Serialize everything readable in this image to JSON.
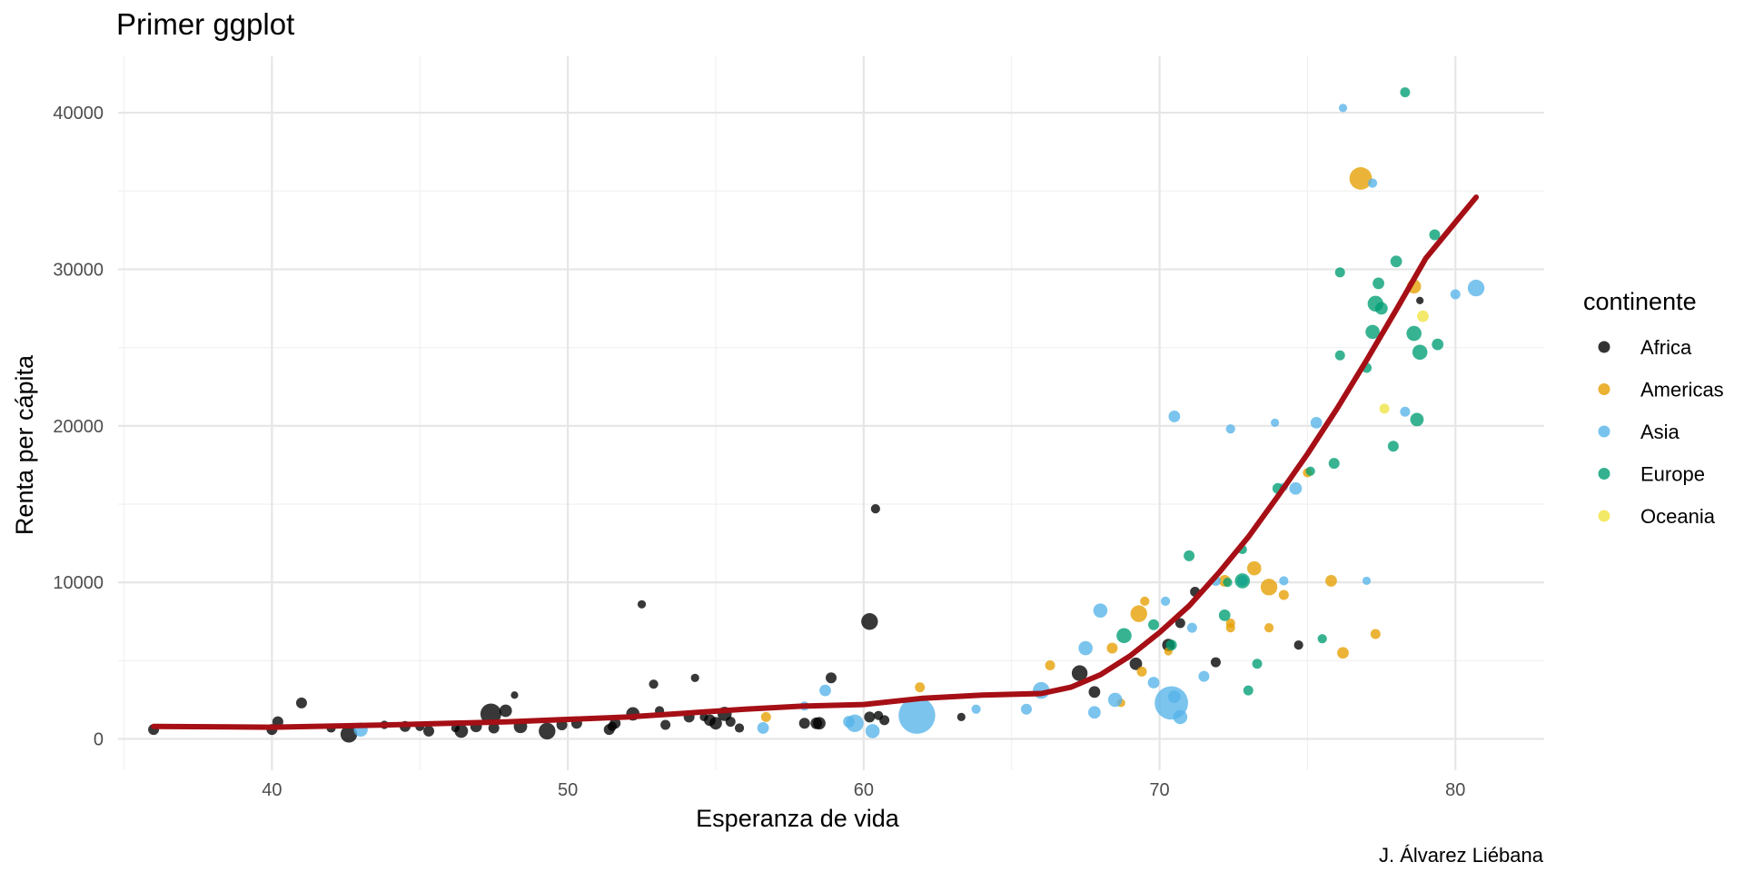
{
  "chart_data": {
    "type": "scatter",
    "title": "Primer ggplot",
    "xlabel": "Esperanza de vida",
    "ylabel": "Renta per cápita",
    "caption": "J. Álvarez Liébana",
    "xlim": [
      34.8,
      83
    ],
    "ylim": [
      -2000,
      43600
    ],
    "x_ticks": [
      40,
      50,
      60,
      70,
      80
    ],
    "y_ticks": [
      0,
      10000,
      20000,
      30000,
      40000
    ],
    "x_tick_labels": [
      "40",
      "50",
      "60",
      "70",
      "80"
    ],
    "y_tick_labels": [
      "0",
      "10000",
      "20000",
      "30000",
      "40000"
    ],
    "grid": true,
    "legend": {
      "title": "continente",
      "position": "right",
      "entries": [
        {
          "label": "Africa",
          "color": "#000000"
        },
        {
          "label": "Americas",
          "color": "#E69F00"
        },
        {
          "label": "Asia",
          "color": "#56B4E9"
        },
        {
          "label": "Europe",
          "color": "#009E73"
        },
        {
          "label": "Oceania",
          "color": "#F0E442"
        }
      ]
    },
    "series": [
      {
        "name": "Africa",
        "color": "#000000",
        "points": [
          [
            36.0,
            600,
            1.3
          ],
          [
            40.0,
            600,
            1.3
          ],
          [
            40.2,
            1100,
            1.3
          ],
          [
            41.0,
            2300,
            1.3
          ],
          [
            42.0,
            700,
            1.1
          ],
          [
            42.6,
            300,
            2.0
          ],
          [
            43.8,
            900,
            1.0
          ],
          [
            44.5,
            800,
            1.3
          ],
          [
            45.0,
            800,
            1.1
          ],
          [
            45.3,
            500,
            1.3
          ],
          [
            46.2,
            700,
            1.0
          ],
          [
            46.4,
            500,
            1.6
          ],
          [
            46.9,
            800,
            1.4
          ],
          [
            47.4,
            1600,
            2.5
          ],
          [
            47.5,
            700,
            1.3
          ],
          [
            47.9,
            1800,
            1.5
          ],
          [
            48.2,
            2800,
            0.9
          ],
          [
            48.4,
            800,
            1.6
          ],
          [
            49.3,
            500,
            2.0
          ],
          [
            49.8,
            900,
            1.3
          ],
          [
            50.3,
            1000,
            1.3
          ],
          [
            51.4,
            600,
            1.3
          ],
          [
            51.5,
            800,
            1.1
          ],
          [
            51.6,
            1000,
            1.3
          ],
          [
            52.2,
            1600,
            1.6
          ],
          [
            52.5,
            8600,
            1.0
          ],
          [
            52.9,
            3500,
            1.1
          ],
          [
            53.1,
            1800,
            1.1
          ],
          [
            53.3,
            900,
            1.2
          ],
          [
            54.1,
            1400,
            1.3
          ],
          [
            54.3,
            3900,
            1.0
          ],
          [
            54.6,
            1400,
            1.0
          ],
          [
            54.8,
            1200,
            1.4
          ],
          [
            55.0,
            1000,
            1.5
          ],
          [
            55.3,
            1600,
            1.7
          ],
          [
            55.5,
            1100,
            1.2
          ],
          [
            55.8,
            700,
            1.1
          ],
          [
            58.0,
            1000,
            1.3
          ],
          [
            58.4,
            1000,
            1.4
          ],
          [
            58.5,
            1000,
            1.5
          ],
          [
            58.9,
            3900,
            1.3
          ],
          [
            60.2,
            1400,
            1.3
          ],
          [
            60.2,
            7500,
            2.0
          ],
          [
            60.4,
            14700,
            1.1
          ],
          [
            60.5,
            1500,
            1.1
          ],
          [
            60.7,
            1200,
            1.2
          ],
          [
            63.3,
            1400,
            1.0
          ],
          [
            67.3,
            4200,
            1.9
          ],
          [
            67.8,
            3000,
            1.4
          ],
          [
            69.2,
            4800,
            1.5
          ],
          [
            70.3,
            6000,
            1.5
          ],
          [
            70.7,
            7400,
            1.2
          ],
          [
            71.2,
            9400,
            1.2
          ],
          [
            71.9,
            4900,
            1.2
          ],
          [
            74.7,
            6000,
            1.1
          ],
          [
            78.8,
            28000,
            0.9
          ]
        ]
      },
      {
        "name": "Americas",
        "color": "#E69F00",
        "points": [
          [
            56.7,
            1400,
            1.2
          ],
          [
            61.9,
            3300,
            1.2
          ],
          [
            66.3,
            4700,
            1.2
          ],
          [
            68.4,
            5800,
            1.3
          ],
          [
            68.7,
            2300,
            1.0
          ],
          [
            69.3,
            8000,
            2.0
          ],
          [
            69.4,
            4300,
            1.2
          ],
          [
            69.5,
            8800,
            1.1
          ],
          [
            70.3,
            5600,
            1.0
          ],
          [
            72.2,
            10100,
            1.4
          ],
          [
            72.4,
            7100,
            1.1
          ],
          [
            72.4,
            7400,
            1.1
          ],
          [
            73.2,
            10900,
            1.7
          ],
          [
            73.7,
            9700,
            2.0
          ],
          [
            73.7,
            7100,
            1.1
          ],
          [
            74.2,
            9200,
            1.2
          ],
          [
            75.0,
            17000,
            1.1
          ],
          [
            75.8,
            10100,
            1.4
          ],
          [
            76.2,
            5500,
            1.4
          ],
          [
            76.8,
            35800,
            2.7
          ],
          [
            77.3,
            6700,
            1.2
          ],
          [
            78.6,
            28900,
            1.7
          ]
        ]
      },
      {
        "name": "Asia",
        "color": "#56B4E9",
        "points": [
          [
            43.0,
            600,
            1.7
          ],
          [
            56.6,
            700,
            1.4
          ],
          [
            58.0,
            2100,
            1.1
          ],
          [
            58.7,
            3100,
            1.4
          ],
          [
            59.5,
            1100,
            1.4
          ],
          [
            59.7,
            1000,
            2.1
          ],
          [
            60.3,
            500,
            1.7
          ],
          [
            61.8,
            1500,
            4.4
          ],
          [
            63.8,
            1900,
            1.1
          ],
          [
            65.5,
            1900,
            1.3
          ],
          [
            66.0,
            3100,
            2.0
          ],
          [
            67.5,
            5800,
            1.7
          ],
          [
            67.8,
            1700,
            1.5
          ],
          [
            68.0,
            8200,
            1.7
          ],
          [
            68.5,
            2500,
            1.7
          ],
          [
            69.8,
            3600,
            1.4
          ],
          [
            70.2,
            8800,
            1.1
          ],
          [
            70.4,
            2300,
            4.0
          ],
          [
            70.5,
            20600,
            1.4
          ],
          [
            70.5,
            2700,
            1.5
          ],
          [
            70.7,
            1400,
            1.7
          ],
          [
            71.1,
            7100,
            1.2
          ],
          [
            71.5,
            4000,
            1.3
          ],
          [
            71.9,
            10100,
            1.2
          ],
          [
            72.4,
            19800,
            1.1
          ],
          [
            72.8,
            10100,
            1.3
          ],
          [
            73.9,
            20200,
            1.0
          ],
          [
            74.2,
            10100,
            1.1
          ],
          [
            74.2,
            16100,
            1.0
          ],
          [
            74.6,
            16000,
            1.5
          ],
          [
            75.3,
            20200,
            1.4
          ],
          [
            76.2,
            40300,
            1.0
          ],
          [
            77.0,
            10100,
            1.0
          ],
          [
            77.2,
            35500,
            1.1
          ],
          [
            78.3,
            20900,
            1.2
          ],
          [
            80.0,
            28400,
            1.2
          ],
          [
            80.7,
            28800,
            2.0
          ]
        ]
      },
      {
        "name": "Europe",
        "color": "#009E73",
        "points": [
          [
            68.8,
            6600,
            1.8
          ],
          [
            69.8,
            7300,
            1.3
          ],
          [
            70.4,
            6000,
            1.3
          ],
          [
            71.0,
            11700,
            1.3
          ],
          [
            72.2,
            7900,
            1.4
          ],
          [
            72.3,
            10000,
            1.1
          ],
          [
            72.8,
            10100,
            1.8
          ],
          [
            72.8,
            12100,
            1.1
          ],
          [
            73.0,
            3100,
            1.2
          ],
          [
            73.3,
            4800,
            1.2
          ],
          [
            74.0,
            16000,
            1.3
          ],
          [
            75.1,
            17100,
            1.1
          ],
          [
            75.5,
            6400,
            1.1
          ],
          [
            75.9,
            17600,
            1.3
          ],
          [
            76.1,
            24500,
            1.2
          ],
          [
            76.1,
            29800,
            1.2
          ],
          [
            77.0,
            23700,
            1.2
          ],
          [
            77.2,
            26000,
            1.7
          ],
          [
            77.3,
            27800,
            1.9
          ],
          [
            77.4,
            29100,
            1.4
          ],
          [
            77.5,
            27500,
            1.5
          ],
          [
            77.9,
            18700,
            1.3
          ],
          [
            78.0,
            30500,
            1.4
          ],
          [
            78.3,
            41300,
            1.2
          ],
          [
            78.6,
            25900,
            1.8
          ],
          [
            78.7,
            20400,
            1.6
          ],
          [
            78.8,
            24700,
            1.8
          ],
          [
            79.3,
            32200,
            1.3
          ],
          [
            79.4,
            25200,
            1.4
          ]
        ]
      },
      {
        "name": "Oceania",
        "color": "#F0E442",
        "points": [
          [
            77.6,
            21100,
            1.2
          ],
          [
            78.9,
            27000,
            1.4
          ]
        ]
      }
    ],
    "smooth_line": {
      "color": "#A50F15",
      "x": [
        36.0,
        40,
        44,
        48,
        52,
        56,
        58,
        60,
        62,
        64,
        66,
        67,
        68,
        69,
        70,
        71,
        72,
        73,
        74,
        75,
        76,
        77,
        78,
        79,
        80,
        80.7
      ],
      "y": [
        800,
        750,
        900,
        1100,
        1400,
        1900,
        2100,
        2200,
        2600,
        2800,
        2900,
        3300,
        4100,
        5300,
        6800,
        8500,
        10600,
        12900,
        15500,
        18200,
        21100,
        24200,
        27400,
        30700,
        33000,
        34600
      ]
    }
  }
}
